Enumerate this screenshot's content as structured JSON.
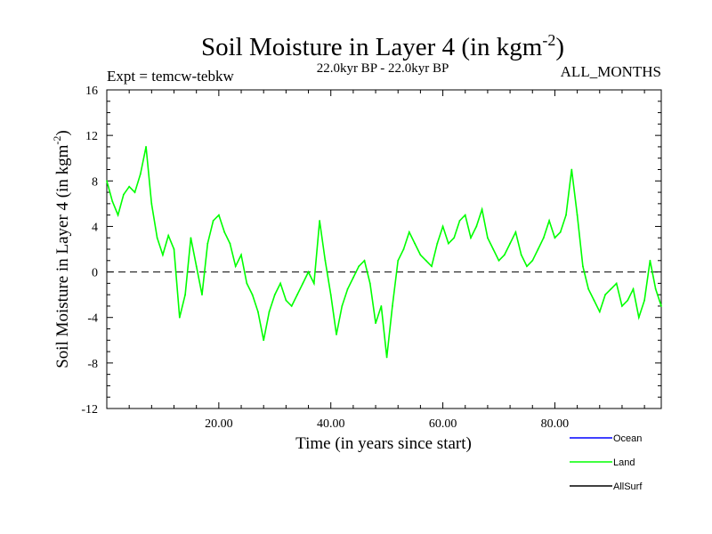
{
  "chart_data": {
    "type": "line",
    "title": "Soil Moisture in Layer 4 (in kgm",
    "title_sup": "-2",
    "title_close": ")",
    "experiment": "Expt = temcw-tebkw",
    "period": "22.0kyr BP - 22.0kyr BP",
    "months": "ALL_MONTHS",
    "xlabel": "Time (in years since start)",
    "ylabel": "Soil Moisture in Layer 4 (in kgm",
    "ylabel_sup": "-2",
    "ylabel_close": ")",
    "xlim": [
      0,
      99
    ],
    "ylim": [
      -12,
      16
    ],
    "x_ticks": [
      20,
      40,
      60,
      80
    ],
    "x_tick_labels": [
      "20.00",
      "40.00",
      "60.00",
      "80.00"
    ],
    "y_ticks": [
      -12,
      -8,
      -4,
      0,
      4,
      8,
      12,
      16
    ],
    "y_tick_labels": [
      "-12",
      "-8",
      "-4",
      "0",
      "4",
      "8",
      "12",
      "16"
    ],
    "zero_line": true,
    "series": [
      {
        "name": "Land",
        "color": "#00ff00",
        "x": [
          0,
          1,
          2,
          3,
          4,
          5,
          6,
          7,
          8,
          9,
          10,
          11,
          12,
          13,
          14,
          15,
          16,
          17,
          18,
          19,
          20,
          21,
          22,
          23,
          24,
          25,
          26,
          27,
          28,
          29,
          30,
          31,
          32,
          33,
          34,
          35,
          36,
          37,
          38,
          39,
          40,
          41,
          42,
          43,
          44,
          45,
          46,
          47,
          48,
          49,
          50,
          51,
          52,
          53,
          54,
          55,
          56,
          57,
          58,
          59,
          60,
          61,
          62,
          63,
          64,
          65,
          66,
          67,
          68,
          69,
          70,
          71,
          72,
          73,
          74,
          75,
          76,
          77,
          78,
          79,
          80,
          81,
          82,
          83,
          84,
          85,
          86,
          87,
          88,
          89,
          90,
          91,
          92,
          93,
          94,
          95,
          96,
          97,
          98,
          99
        ],
        "values": [
          8.0,
          6.2,
          5.0,
          6.8,
          7.5,
          7.0,
          8.6,
          11.0,
          6.0,
          3.0,
          1.5,
          3.2,
          2.0,
          -4.0,
          -2.0,
          3.0,
          0.5,
          -2.0,
          2.5,
          4.5,
          5.0,
          3.5,
          2.5,
          0.5,
          1.5,
          -1.0,
          -2.0,
          -3.5,
          -6.0,
          -3.5,
          -2.0,
          -1.0,
          -2.5,
          -3.0,
          -2.0,
          -1.0,
          0.0,
          -1.0,
          4.5,
          1.0,
          -2.0,
          -5.5,
          -3.0,
          -1.5,
          -0.5,
          0.5,
          1.0,
          -1.0,
          -4.5,
          -3.0,
          -7.5,
          -3.0,
          1.0,
          2.0,
          3.5,
          2.5,
          1.5,
          1.0,
          0.5,
          2.5,
          4.0,
          2.5,
          3.0,
          4.5,
          5.0,
          3.0,
          4.0,
          5.5,
          3.0,
          2.0,
          1.0,
          1.5,
          2.5,
          3.5,
          1.5,
          0.5,
          1.0,
          2.0,
          3.0,
          4.5,
          3.0,
          3.5,
          5.0,
          9.0,
          5.0,
          0.5,
          -1.5,
          -2.5,
          -3.5,
          -2.0,
          -1.5,
          -1.0,
          -3.0,
          -2.5,
          -1.5,
          -4.0,
          -2.5,
          1.0,
          -1.5,
          -3.0
        ]
      }
    ],
    "legend_position": "bottom-right",
    "legend": [
      {
        "name": "Ocean",
        "color": "#0000ff"
      },
      {
        "name": "Land",
        "color": "#00ff00"
      },
      {
        "name": "AllSurf",
        "color": "#000000"
      }
    ]
  }
}
